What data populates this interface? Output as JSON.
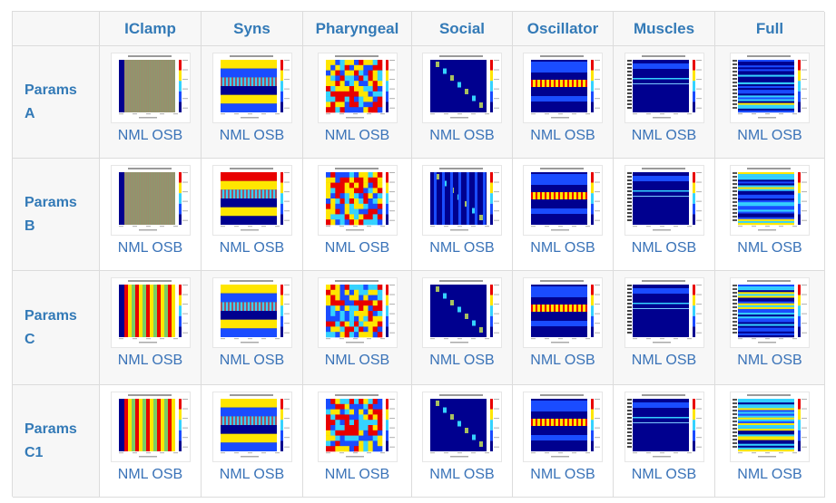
{
  "table": {
    "corner": "",
    "columns": [
      "IClamp",
      "Syns",
      "Pharyngeal",
      "Social",
      "Oscillator",
      "Muscles",
      "Full"
    ],
    "rows": [
      {
        "label": "Params\nA"
      },
      {
        "label": "Params\nB"
      },
      {
        "label": "Params\nC"
      },
      {
        "label": "Params\nC1"
      }
    ],
    "link_nml": "NML",
    "link_osb": "OSB"
  },
  "colors": {
    "header_text": "#337ab7",
    "link": "#3a73b8",
    "plot_navy": "#00008f",
    "plot_blue": "#1a4cff",
    "plot_cyan": "#35d2ff",
    "plot_yellow": "#ffe600",
    "plot_red": "#e80000"
  }
}
